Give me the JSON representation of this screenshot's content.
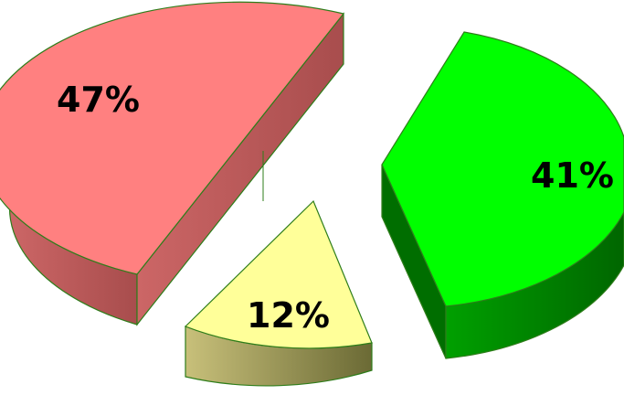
{
  "chart_data": {
    "type": "pie",
    "title": "",
    "legend": false,
    "exploded": true,
    "three_d": true,
    "slices": [
      {
        "label": "47%",
        "value": 47,
        "color": "#ff8080"
      },
      {
        "label": "41%",
        "value": 41,
        "color": "#00ff00"
      },
      {
        "label": "12%",
        "value": 12,
        "color": "#ffff99"
      }
    ],
    "edge_color": "#2e7d1a"
  }
}
